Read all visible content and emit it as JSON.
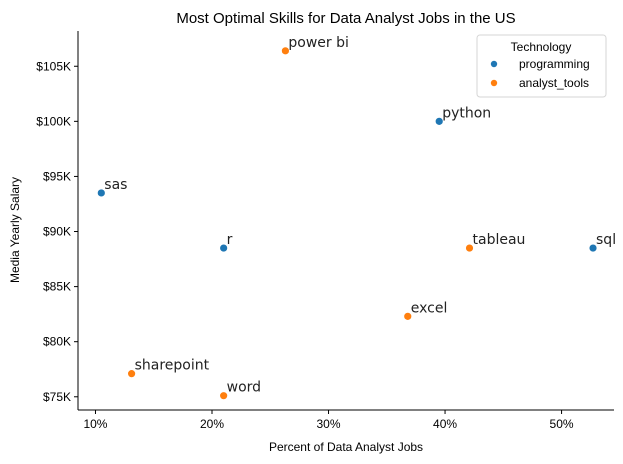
{
  "chart_data": {
    "type": "scatter",
    "title": "Most Optimal Skills for Data Analyst Jobs in the US",
    "xlabel": "Percent of Data Analyst Jobs",
    "ylabel": "Media Yearly Salary",
    "xlim": [
      8.5,
      54.5
    ],
    "ylim": [
      73800,
      108200
    ],
    "x_ticks": [
      10,
      20,
      30,
      40,
      50
    ],
    "x_tick_labels": [
      "10%",
      "20%",
      "30%",
      "40%",
      "50%"
    ],
    "y_ticks": [
      75000,
      80000,
      85000,
      90000,
      95000,
      100000,
      105000
    ],
    "y_tick_labels": [
      "$75K",
      "$80K",
      "$85K",
      "$90K",
      "$95K",
      "$100K",
      "$105K"
    ],
    "grid": false,
    "legend": {
      "title": "Technology",
      "placement": "top-right",
      "entries": [
        {
          "name": "programming",
          "color": "#1f77b4"
        },
        {
          "name": "analyst_tools",
          "color": "#ff7f0e"
        }
      ]
    },
    "points": [
      {
        "label": "sql",
        "x": 52.7,
        "y": 88500,
        "category": "programming"
      },
      {
        "label": "python",
        "x": 39.5,
        "y": 100000,
        "category": "programming"
      },
      {
        "label": "r",
        "x": 21.0,
        "y": 88500,
        "category": "programming"
      },
      {
        "label": "sas",
        "x": 10.5,
        "y": 93500,
        "category": "programming"
      },
      {
        "label": "power bi",
        "x": 26.3,
        "y": 106400,
        "category": "analyst_tools"
      },
      {
        "label": "tableau",
        "x": 42.1,
        "y": 88500,
        "category": "analyst_tools"
      },
      {
        "label": "excel",
        "x": 36.8,
        "y": 82300,
        "category": "analyst_tools"
      },
      {
        "label": "sharepoint",
        "x": 13.1,
        "y": 77100,
        "category": "analyst_tools"
      },
      {
        "label": "word",
        "x": 21.0,
        "y": 75100,
        "category": "analyst_tools"
      }
    ]
  }
}
